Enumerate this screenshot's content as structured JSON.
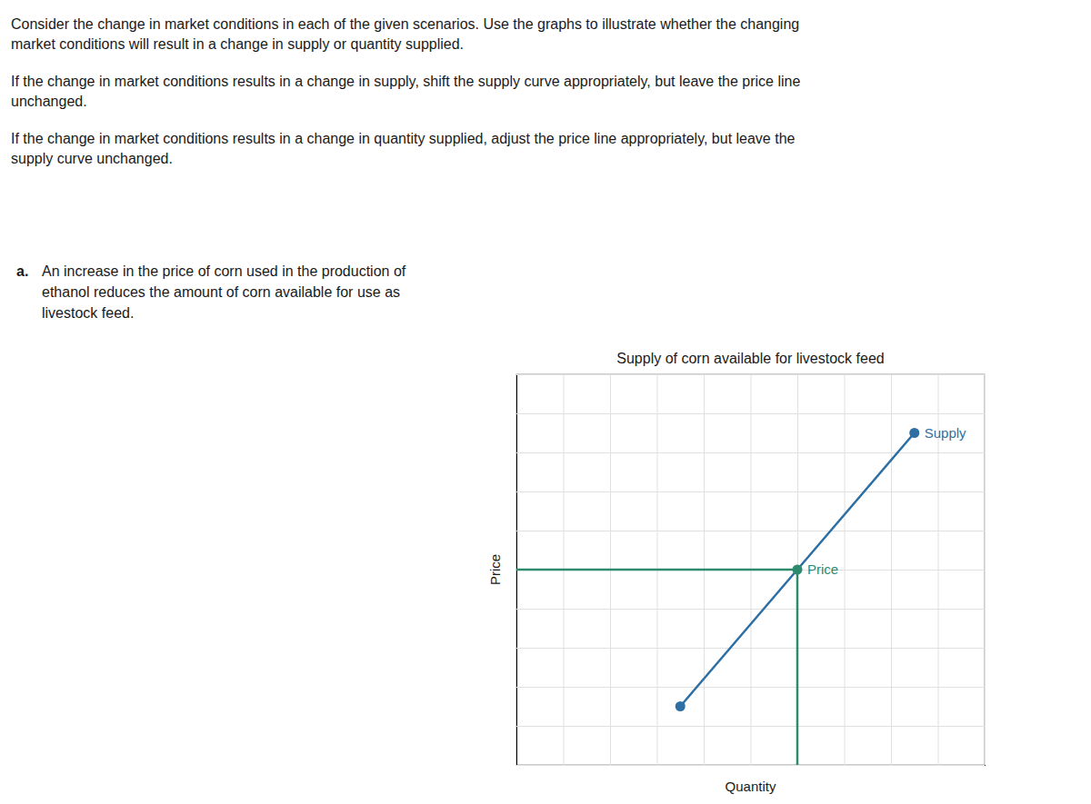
{
  "chart_data": {
    "type": "line",
    "title": "Supply of corn available for livestock feed",
    "xlabel": "Quantity",
    "ylabel": "Price",
    "intro": [
      [
        "Consider the change in market conditions in each of the given scenarios. Use the graphs to illustrate whether the changing",
        "market conditions will result in a change in supply or quantity supplied."
      ],
      [
        "If the change in market conditions results in a change in supply, shift the supply curve appropriately, but leave the price line",
        "unchanged."
      ],
      [
        "If the change in market conditions results in a change in quantity supplied, adjust the price line appropriately, but leave the",
        "supply curve unchanged."
      ]
    ],
    "scenario_label": "a.",
    "scenario_lines": [
      "An increase in the price of corn used in the production of",
      "ethanol reduces the amount of corn available for use as",
      "livestock feed."
    ],
    "series": [
      {
        "name": "Supply",
        "color": "#2e6fa3",
        "marker": "endpoints",
        "x": [
          3.5,
          6.0,
          8.5
        ],
        "values": [
          1.5,
          5.0,
          8.5
        ]
      },
      {
        "name": "Price",
        "color": "#2d8a6e",
        "marker": "end",
        "x": [
          0,
          6.0
        ],
        "values": [
          5.0,
          5.0
        ]
      },
      {
        "color": "#2d8a6e",
        "x": [
          6.0,
          6.0
        ],
        "values": [
          0,
          5.0
        ]
      }
    ],
    "xlim": [
      0,
      10
    ],
    "ylim": [
      0,
      10
    ],
    "xticks": [
      0,
      1,
      2,
      3,
      4,
      5,
      6,
      7,
      8,
      9,
      10
    ],
    "yticks": [
      0,
      1,
      2,
      3,
      4,
      5,
      6,
      7,
      8,
      9,
      10
    ],
    "grid": true,
    "tick_labels": false
  }
}
